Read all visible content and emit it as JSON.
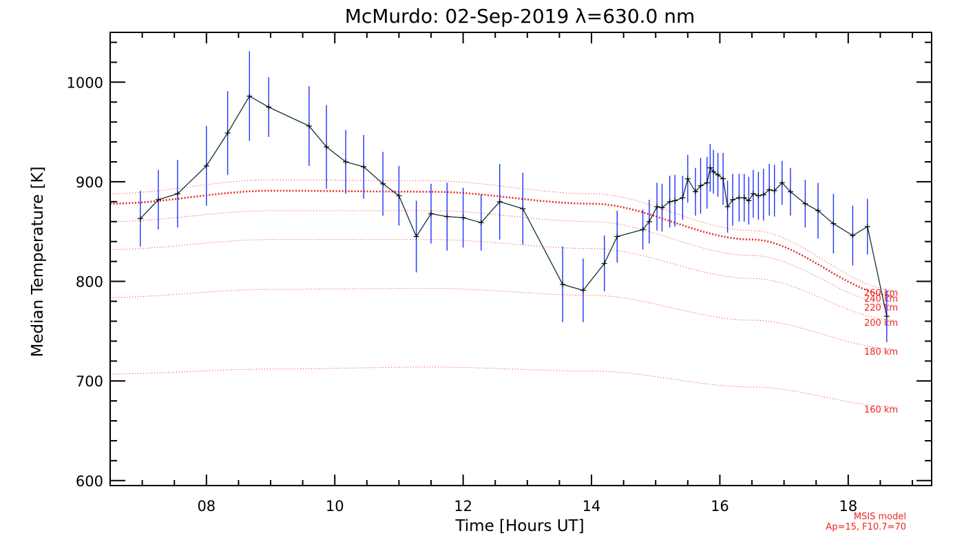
{
  "chart_data": {
    "type": "line",
    "title": "McMurdo: 02-Sep-2019 λ=630.0 nm",
    "xlabel": "Time [Hours UT]",
    "ylabel": "Median Temperature [K]",
    "xlim": [
      6.5,
      19.3
    ],
    "ylim": [
      595,
      1050
    ],
    "x_ticks": [
      8,
      10,
      12,
      14,
      16,
      18
    ],
    "x_tick_labels": [
      "08",
      "10",
      "12",
      "14",
      "16",
      "18"
    ],
    "y_ticks": [
      600,
      700,
      800,
      900,
      1000
    ],
    "y_tick_labels": [
      "600",
      "700",
      "800",
      "900",
      "1000"
    ],
    "grid": false,
    "colors": {
      "data_line": "#0d2f3a",
      "error_bar": "#1f2fff",
      "model": "#ee2222",
      "axis": "#000000"
    },
    "series": [
      {
        "x": [
          6.97,
          7.25,
          7.55,
          8.0,
          8.33,
          8.67,
          8.97,
          9.6,
          9.87,
          10.17,
          10.45,
          10.75,
          11.0,
          11.27,
          11.5,
          11.75,
          12.0,
          12.28,
          12.57,
          12.93,
          13.55,
          13.87,
          14.2,
          14.4,
          14.8,
          14.9,
          15.02,
          15.1,
          15.22,
          15.3,
          15.42,
          15.5,
          15.62,
          15.7,
          15.8,
          15.85,
          15.9,
          15.97,
          16.05,
          16.12,
          16.2,
          16.3,
          16.38,
          16.45,
          16.52,
          16.6,
          16.68,
          16.77,
          16.85,
          16.97,
          17.1,
          17.33,
          17.53,
          17.77,
          18.07,
          18.3,
          18.6
        ],
        "y": [
          863,
          882,
          888,
          916,
          949,
          986,
          975,
          956,
          935,
          920,
          915,
          898,
          886,
          845,
          868,
          865,
          864,
          859,
          880,
          873,
          797,
          791,
          818,
          845,
          852,
          860,
          875,
          874,
          880,
          881,
          884,
          903,
          890,
          896,
          899,
          914,
          910,
          907,
          903,
          875,
          882,
          884,
          884,
          881,
          888,
          886,
          887,
          892,
          891,
          899,
          890,
          878,
          871,
          858,
          846,
          855,
          765
        ],
        "error": [
          28,
          30,
          34,
          40,
          42,
          45,
          30,
          40,
          42,
          32,
          32,
          32,
          30,
          36,
          30,
          34,
          30,
          28,
          38,
          36,
          38,
          32,
          28,
          26,
          20,
          22,
          24,
          24,
          26,
          26,
          22,
          24,
          24,
          28,
          26,
          24,
          22,
          22,
          26,
          26,
          26,
          24,
          24,
          24,
          24,
          24,
          26,
          26,
          26,
          22,
          24,
          24,
          28,
          30,
          30,
          28,
          26
        ]
      }
    ],
    "model": {
      "name": "MSIS model",
      "params": "Ap=15, F10.7=70",
      "curves": [
        {
          "label": "160 km",
          "x": [
            6.5,
            9.0,
            11.5,
            14.0,
            16.5,
            18.75
          ],
          "y": [
            707,
            712,
            714,
            710,
            694,
            674
          ],
          "weight": "thin"
        },
        {
          "label": "180 km",
          "x": [
            6.5,
            9.0,
            11.5,
            14.0,
            16.5,
            18.75
          ],
          "y": [
            784,
            792,
            793,
            786,
            761,
            732
          ],
          "weight": "thin"
        },
        {
          "label": "200 km",
          "x": [
            6.5,
            9.0,
            11.5,
            14.0,
            16.5,
            18.75
          ],
          "y": [
            832,
            842,
            842,
            833,
            803,
            761
          ],
          "weight": "thin"
        },
        {
          "label": "220 km",
          "x": [
            6.5,
            9.0,
            11.5,
            14.0,
            16.5,
            18.75
          ],
          "y": [
            860,
            871,
            871,
            860,
            826,
            776
          ],
          "weight": "thin"
        },
        {
          "label": "240 km",
          "x": [
            6.5,
            9.0,
            11.5,
            14.0,
            16.5,
            18.75
          ],
          "y": [
            878,
            891,
            890,
            878,
            842,
            785
          ],
          "weight": "thick"
        },
        {
          "label": "260 km",
          "x": [
            6.5,
            9.0,
            11.5,
            14.0,
            16.5,
            18.75
          ],
          "y": [
            888,
            902,
            901,
            888,
            851,
            791
          ],
          "weight": "thin"
        }
      ]
    }
  }
}
